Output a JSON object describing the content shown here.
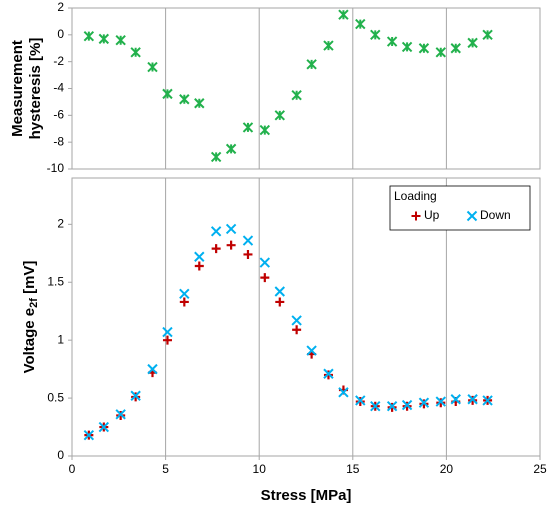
{
  "chart_data": [
    {
      "type": "scatter",
      "marker": "asterisk",
      "ylabel": [
        "Measurement",
        "hysteresis [%]"
      ],
      "x": [
        0.9,
        1.7,
        2.6,
        3.4,
        4.3,
        5.1,
        6.0,
        6.8,
        7.7,
        8.5,
        9.4,
        10.3,
        11.1,
        12.0,
        12.8,
        13.7,
        14.5,
        15.4,
        16.2,
        17.1,
        17.9,
        18.8,
        19.7,
        20.5,
        21.4,
        22.2
      ],
      "series": [
        {
          "color": "#22b14c",
          "values": [
            -0.1,
            -0.3,
            -0.4,
            -1.3,
            -2.4,
            -4.4,
            -4.8,
            -5.1,
            -9.1,
            -8.5,
            -6.9,
            -7.1,
            -6.0,
            -4.5,
            -2.2,
            -0.8,
            1.5,
            0.8,
            0.0,
            -0.5,
            -0.9,
            -1.0,
            -1.3,
            -1.0,
            -0.6,
            0.0
          ]
        }
      ],
      "xlim": [
        0,
        25
      ],
      "ylim": [
        -10,
        2
      ],
      "yticks": [
        2,
        0,
        -2,
        -4,
        -6,
        -8,
        -10
      ],
      "grid": "x"
    },
    {
      "type": "scatter",
      "ylabel": [
        "Voltage e",
        "2f",
        " [mV]"
      ],
      "xlabel": "Stress [MPa]",
      "legend_title": "Loading",
      "legend": "upper right",
      "x": [
        0.9,
        1.7,
        2.6,
        3.4,
        4.3,
        5.1,
        6.0,
        6.8,
        7.7,
        8.5,
        9.4,
        10.3,
        11.1,
        12.0,
        12.8,
        13.7,
        14.5,
        15.4,
        16.2,
        17.1,
        17.9,
        18.8,
        19.7,
        20.5,
        21.4,
        22.2
      ],
      "series": [
        {
          "name": "Up",
          "color": "#c00000",
          "marker": "plus",
          "values": [
            0.18,
            0.25,
            0.35,
            0.51,
            0.72,
            1.0,
            1.33,
            1.64,
            1.79,
            1.82,
            1.74,
            1.54,
            1.33,
            1.09,
            0.88,
            0.7,
            0.57,
            0.47,
            0.43,
            0.42,
            0.43,
            0.45,
            0.46,
            0.47,
            0.48,
            0.48
          ]
        },
        {
          "name": "Down",
          "color": "#00b0f0",
          "marker": "x",
          "values": [
            0.18,
            0.25,
            0.36,
            0.52,
            0.75,
            1.07,
            1.4,
            1.72,
            1.94,
            1.96,
            1.86,
            1.67,
            1.42,
            1.17,
            0.91,
            0.71,
            0.55,
            0.48,
            0.43,
            0.43,
            0.44,
            0.46,
            0.47,
            0.49,
            0.49,
            0.48
          ]
        }
      ],
      "xlim": [
        0,
        25
      ],
      "xticks": [
        0,
        5,
        10,
        15,
        20,
        25
      ],
      "ylim": [
        0,
        2.4
      ],
      "yticks": [
        0,
        0.5,
        1,
        1.5,
        2
      ],
      "grid": "x"
    }
  ]
}
